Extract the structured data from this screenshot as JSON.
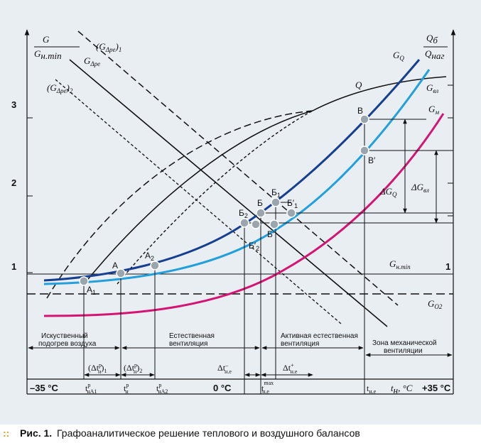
{
  "axes": {
    "left_label_num": "G",
    "left_label_den": "G",
    "left_label_den_sub": "н.min",
    "right_label_num": "Q",
    "right_label_num_sub": "б",
    "right_label_den": "Q",
    "right_label_den_sub": "наг",
    "y_ticks": [
      "3",
      "2",
      "1"
    ],
    "right_tick": "1",
    "x_left": "–35 °C",
    "x_zero": "0 °C",
    "x_right": "+35 °C",
    "x_var": "t",
    "x_var_sub": "н",
    "x_unit": ", °C"
  },
  "curves": {
    "gdp": "G",
    "gdp_sub": "Δpe",
    "gdp1": "(G",
    "gdp1_sub": "Δpe",
    "gdp1_tail": ")",
    "gdp1_idx": "1",
    "gdp2": "(G",
    "gdp2_sub": "Δpe",
    "gdp2_tail": ")",
    "gdp2_idx": "2",
    "q": "Q",
    "gq": "G",
    "gq_sub": "Q",
    "gvl": "G",
    "gvl_sub": "вл",
    "gm": "G",
    "gm_sub": "м",
    "gnmin": "G",
    "gnmin_sub": "н.min",
    "go2": "G",
    "go2_sub": "O2"
  },
  "points": {
    "A1": "А",
    "A1_sub": "1",
    "A": "А",
    "A2": "А",
    "A2_sub": "2",
    "B2": "Б",
    "B2_sub": "2",
    "B": "Б",
    "B1": "Б",
    "B1_sub": "1",
    "B1p": "Б′",
    "B1p_sub": "1",
    "Bp": "Б′",
    "B2p": "Б′",
    "B2p_sub": "2",
    "V": "В",
    "Vp": "В′"
  },
  "deltas": {
    "dgq": "ΔG",
    "dgq_sub": "Q",
    "dgvl": "ΔG",
    "dgvl_sub": "вл"
  },
  "zones": {
    "z1_line1": "Искуственный",
    "z1_line2": "подогрев воздуха",
    "z2_line1": "Естественная",
    "z2_line2": "вентиляция",
    "z3_line1": "Активная естественная",
    "z3_line2": "вентиляция",
    "z4_line1": "Зона механической",
    "z4_line2": "вентиляции"
  },
  "intervals": {
    "i1": "(Δt",
    "i1_sup": "р",
    "i1_sub": "н",
    "i1_tail": ")",
    "i1_idx": "1",
    "i2": "(Δt",
    "i2_sup": "р",
    "i2_sub": "н",
    "i2_tail": ")",
    "i2_idx": "2",
    "i3": "Δt",
    "i3_sup": "–",
    "i3_sub": "н.е",
    "i4": "Δt",
    "i4_sup": "+",
    "i4_sub": "н.е"
  },
  "x_marks": {
    "m1": "t",
    "m1_sup": "р",
    "m1_sub": "нА1",
    "m2": "t",
    "m2_sup": "р",
    "m2_sub": "н",
    "m3": "t",
    "m3_sup": "р",
    "m3_sub": "нА2",
    "m4": "t",
    "m4_sup": "max",
    "m4_sub": "н.е",
    "m5": "t",
    "m5_sub": "н.е"
  },
  "colors": {
    "gq": "#163f8f",
    "gvl": "#23a0dc",
    "gm": "#d41472",
    "point_fill": "#9ba5ad",
    "caption_dots": "#e0a020"
  },
  "caption": {
    "dots": "::",
    "label": "Рис. 1.",
    "text": "Графоаналитическое решение теплового и воздушного балансов"
  }
}
